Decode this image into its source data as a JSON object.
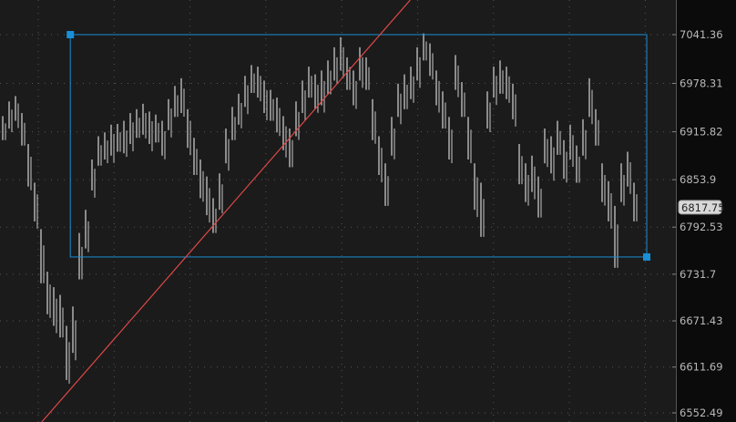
{
  "chart_data": {
    "type": "ohlc-bar",
    "title": "",
    "xlabel": "",
    "ylabel": "",
    "ylim": [
      6552.49,
      7041.36
    ],
    "grid": true,
    "y_ticks": [
      "7041.36",
      "6978.31",
      "6915.82",
      "6853.9",
      "6792.53",
      "6731.7",
      "6671.43",
      "6611.69",
      "6552.49"
    ],
    "last_price": "6817.75",
    "colors": {
      "bars": "#c8c8c8",
      "background": "#1b1b1b",
      "axis_background": "#0b0b0b",
      "rectangle": "#1a8fd6",
      "trendline": "#e04848",
      "grid": "#555555",
      "badge": "#d8d8d8"
    },
    "bars": [
      [
        6936,
        6905
      ],
      [
        6955,
        6920
      ],
      [
        6962,
        6930
      ],
      [
        6940,
        6898
      ],
      [
        6900,
        6845
      ],
      [
        6850,
        6800
      ],
      [
        6790,
        6720
      ],
      [
        6735,
        6680
      ],
      [
        6715,
        6665
      ],
      [
        6705,
        6650
      ],
      [
        6665,
        6595
      ],
      [
        6690,
        6630
      ],
      [
        6785,
        6725
      ],
      [
        6815,
        6765
      ],
      [
        6880,
        6840
      ],
      [
        6910,
        6872
      ],
      [
        6915,
        6880
      ],
      [
        6925,
        6885
      ],
      [
        6926,
        6890
      ],
      [
        6930,
        6888
      ],
      [
        6940,
        6900
      ],
      [
        6945,
        6908
      ],
      [
        6952,
        6912
      ],
      [
        6942,
        6900
      ],
      [
        6938,
        6902
      ],
      [
        6930,
        6885
      ],
      [
        6958,
        6918
      ],
      [
        6975,
        6935
      ],
      [
        6985,
        6940
      ],
      [
        6945,
        6895
      ],
      [
        6908,
        6860
      ],
      [
        6880,
        6830
      ],
      [
        6858,
        6808
      ],
      [
        6830,
        6785
      ],
      [
        6862,
        6815
      ],
      [
        6920,
        6875
      ],
      [
        6948,
        6905
      ],
      [
        6965,
        6925
      ],
      [
        6988,
        6948
      ],
      [
        7002,
        6966
      ],
      [
        7000,
        6960
      ],
      [
        6982,
        6940
      ],
      [
        6970,
        6930
      ],
      [
        6960,
        6915
      ],
      [
        6936,
        6892
      ],
      [
        6920,
        6870
      ],
      [
        6955,
        6910
      ],
      [
        6982,
        6940
      ],
      [
        7000,
        6960
      ],
      [
        6990,
        6945
      ],
      [
        6995,
        6950
      ],
      [
        7008,
        6964
      ],
      [
        7025,
        6982
      ],
      [
        7038,
        6995
      ],
      [
        7012,
        6970
      ],
      [
        6995,
        6950
      ],
      [
        7025,
        6982
      ],
      [
        7012,
        6970
      ],
      [
        6958,
        6905
      ],
      [
        6910,
        6860
      ],
      [
        6875,
        6820
      ],
      [
        6935,
        6885
      ],
      [
        6978,
        6935
      ],
      [
        6990,
        6945
      ],
      [
        7000,
        6958
      ],
      [
        7025,
        6982
      ],
      [
        7043,
        7008
      ],
      [
        7030,
        6988
      ],
      [
        6995,
        6950
      ],
      [
        6968,
        6920
      ],
      [
        6935,
        6880
      ],
      [
        7015,
        6970
      ],
      [
        6980,
        6935
      ],
      [
        6935,
        6880
      ],
      [
        6875,
        6815
      ],
      [
        6850,
        6780
      ],
      [
        6968,
        6920
      ],
      [
        7000,
        6960
      ],
      [
        7008,
        6965
      ],
      [
        7000,
        6958
      ],
      [
        6978,
        6932
      ],
      [
        6900,
        6848
      ],
      [
        6875,
        6825
      ],
      [
        6885,
        6838
      ],
      [
        6858,
        6805
      ],
      [
        6920,
        6875
      ],
      [
        6910,
        6862
      ],
      [
        6930,
        6886
      ],
      [
        6905,
        6855
      ],
      [
        6925,
        6880
      ],
      [
        6898,
        6850
      ],
      [
        6932,
        6885
      ],
      [
        6985,
        6935
      ],
      [
        6945,
        6898
      ],
      [
        6875,
        6825
      ],
      [
        6852,
        6800
      ],
      [
        6820,
        6740
      ],
      [
        6875,
        6825
      ],
      [
        6890,
        6845
      ],
      [
        6850,
        6800
      ]
    ],
    "rectangle": {
      "bar_start": 10.6,
      "bar_end": 101,
      "price_top": 7041.36,
      "price_bottom": 6754
    },
    "trendline": {
      "start": {
        "bar": 10.6,
        "price": 6583
      },
      "end": {
        "bar": 63.9,
        "price": 7086
      }
    }
  }
}
